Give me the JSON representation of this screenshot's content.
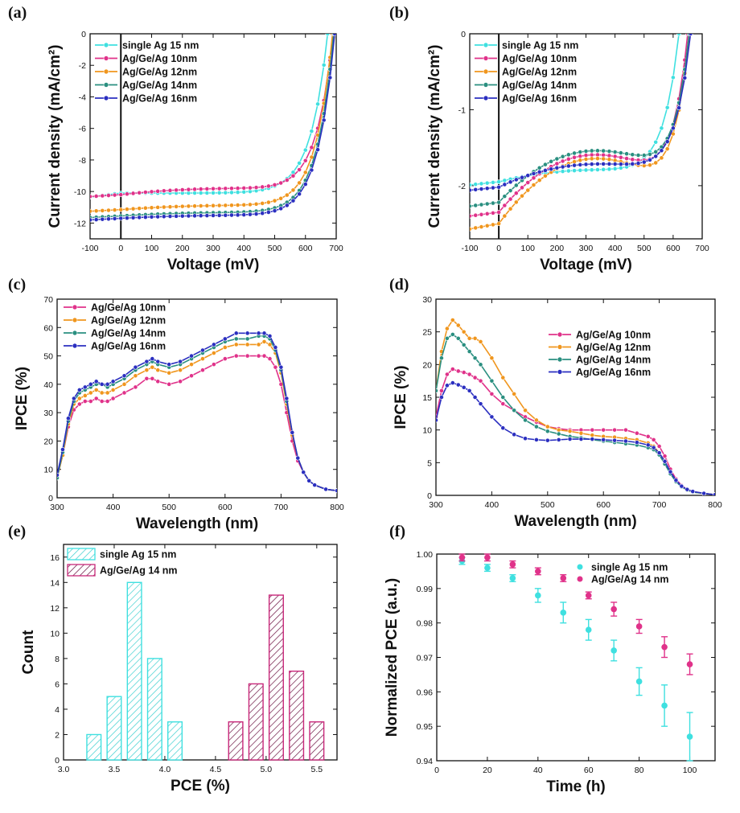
{
  "chart_data": [
    {
      "panel": "(a)",
      "type": "line",
      "xlabel": "Voltage (mV)",
      "ylabel": "Current density (mA/cm²)",
      "xlim": [
        -100,
        700
      ],
      "ylim": [
        -13,
        0
      ],
      "xticks": [
        -100,
        0,
        100,
        200,
        300,
        400,
        500,
        600,
        700
      ],
      "yticks": [
        -12,
        -10,
        -8,
        -6,
        -4,
        -2,
        0
      ],
      "legend_position": "top-left",
      "series": [
        {
          "name": "single Ag 15 nm",
          "color": "#3fe0e0",
          "Jsc": 10.1,
          "Voc": 672,
          "Jr": 10.35,
          "a": 0.0
        },
        {
          "name": "Ag/Ge/Ag 10nm",
          "color": "#e0328a",
          "Jsc": 10.2,
          "Voc": 690,
          "Jr": 10.32,
          "a": 1.5
        },
        {
          "name": "Ag/Ge/Ag 12nm",
          "color": "#f0961e",
          "Jsc": 11.15,
          "Voc": 688,
          "Jr": 11.25,
          "a": 1.0
        },
        {
          "name": "Ag/Ge/Ag 14nm",
          "color": "#2a8f80",
          "Jsc": 11.55,
          "Voc": 692,
          "Jr": 11.65,
          "a": 0.8
        },
        {
          "name": "Ag/Ge/Ag 16nm",
          "color": "#2b2fc0",
          "Jsc": 11.7,
          "Voc": 695,
          "Jr": 11.8,
          "a": 0.7
        }
      ]
    },
    {
      "panel": "(b)",
      "type": "line",
      "xlabel": "Voltage (mV)",
      "ylabel": "Current density (mA/cm²)",
      "xlim": [
        -100,
        700
      ],
      "ylim": [
        -2.7,
        0
      ],
      "xticks": [
        -100,
        0,
        100,
        200,
        300,
        400,
        500,
        600,
        700
      ],
      "yticks": [
        -2,
        -1,
        0
      ],
      "legend_position": "top-left",
      "series": [
        {
          "name": "single Ag 15 nm",
          "color": "#3fe0e0",
          "Jsc": 1.95,
          "Voc": 620,
          "Jr": 1.99,
          "a": 0.6
        },
        {
          "name": "Ag/Ge/Ag 10nm",
          "color": "#e0328a",
          "Jsc": 2.35,
          "Voc": 650,
          "Jr": 2.4,
          "a": 3.0
        },
        {
          "name": "Ag/Ge/Ag 12nm",
          "color": "#f0961e",
          "Jsc": 2.5,
          "Voc": 655,
          "Jr": 2.57,
          "a": 3.4
        },
        {
          "name": "Ag/Ge/Ag 14nm",
          "color": "#2a8f80",
          "Jsc": 2.22,
          "Voc": 655,
          "Jr": 2.27,
          "a": 2.7
        },
        {
          "name": "Ag/Ge/Ag 16nm",
          "color": "#2b2fc0",
          "Jsc": 2.02,
          "Voc": 660,
          "Jr": 2.06,
          "a": 1.2
        }
      ]
    },
    {
      "panel": "(c)",
      "type": "line",
      "xlabel": "Wavelength (nm)",
      "ylabel": "IPCE (%)",
      "xlim": [
        300,
        800
      ],
      "ylim": [
        0,
        70
      ],
      "xticks": [
        300,
        400,
        500,
        600,
        700,
        800
      ],
      "yticks": [
        0,
        10,
        20,
        30,
        40,
        50,
        60,
        70
      ],
      "legend_position": "top-left",
      "series": [
        {
          "name": "Ag/Ge/Ag 10nm",
          "color": "#e0328a",
          "x": [
            300,
            310,
            320,
            330,
            340,
            350,
            360,
            370,
            380,
            390,
            400,
            420,
            440,
            460,
            470,
            480,
            500,
            520,
            540,
            560,
            580,
            600,
            620,
            640,
            660,
            670,
            680,
            690,
            700,
            710,
            720,
            730,
            740,
            750,
            760,
            780,
            800
          ],
          "y": [
            7,
            15,
            25,
            31,
            33,
            34,
            34,
            35,
            34,
            34,
            35,
            37,
            39,
            42,
            42,
            41,
            40,
            41,
            43,
            45,
            47,
            49,
            50,
            50,
            50,
            50,
            49,
            46,
            40,
            30,
            20,
            13,
            9,
            6,
            4.5,
            3,
            2.5
          ]
        },
        {
          "name": "Ag/Ge/Ag 12nm",
          "color": "#f0961e",
          "x": [
            300,
            310,
            320,
            330,
            340,
            350,
            360,
            370,
            380,
            390,
            400,
            420,
            440,
            460,
            470,
            480,
            500,
            520,
            540,
            560,
            580,
            600,
            620,
            640,
            660,
            670,
            680,
            690,
            700,
            710,
            720,
            730,
            740,
            750,
            760,
            780,
            800
          ],
          "y": [
            7,
            15,
            26,
            33,
            35,
            36,
            37,
            38,
            37,
            37,
            38,
            40,
            43,
            45,
            46,
            45,
            44,
            45,
            47,
            49,
            51,
            53,
            54,
            54,
            54,
            55,
            54,
            51,
            44,
            33,
            22,
            14,
            9,
            6,
            4.5,
            3,
            2.5
          ]
        },
        {
          "name": "Ag/Ge/Ag 14nm",
          "color": "#2a8f80",
          "x": [
            300,
            310,
            320,
            330,
            340,
            350,
            360,
            370,
            380,
            390,
            400,
            420,
            440,
            460,
            470,
            480,
            500,
            520,
            540,
            560,
            580,
            600,
            620,
            640,
            660,
            670,
            680,
            690,
            700,
            710,
            720,
            730,
            740,
            750,
            760,
            780,
            800
          ],
          "y": [
            7,
            16,
            27,
            34,
            37,
            38,
            39,
            40,
            40,
            39,
            40,
            42,
            45,
            47,
            48,
            47,
            46,
            47,
            49,
            51,
            53,
            55,
            56,
            56,
            57,
            57,
            56,
            52,
            45,
            34,
            23,
            14,
            9,
            6,
            4.5,
            3,
            2.5
          ]
        },
        {
          "name": "Ag/Ge/Ag 16nm",
          "color": "#2b2fc0",
          "x": [
            300,
            310,
            320,
            330,
            340,
            350,
            360,
            370,
            380,
            390,
            400,
            420,
            440,
            460,
            470,
            480,
            500,
            520,
            540,
            560,
            580,
            600,
            620,
            640,
            660,
            670,
            680,
            690,
            700,
            710,
            720,
            730,
            740,
            750,
            760,
            780,
            800
          ],
          "y": [
            8,
            17,
            28,
            35,
            38,
            39,
            40,
            41,
            40,
            40,
            41,
            43,
            46,
            48,
            49,
            48,
            47,
            48,
            50,
            52,
            54,
            56,
            58,
            58,
            58,
            58,
            57,
            53,
            46,
            35,
            23,
            14,
            9,
            6,
            4.5,
            3,
            2.5
          ]
        }
      ]
    },
    {
      "panel": "(d)",
      "type": "line",
      "xlabel": "Wavelength (nm)",
      "ylabel": "IPCE (%)",
      "xlim": [
        300,
        800
      ],
      "ylim": [
        0,
        30
      ],
      "xticks": [
        300,
        400,
        500,
        600,
        700,
        800
      ],
      "yticks": [
        0,
        5,
        10,
        15,
        20,
        25,
        30
      ],
      "legend_position": "top-right",
      "series": [
        {
          "name": "Ag/Ge/Ag 10nm",
          "color": "#e0328a",
          "x": [
            300,
            310,
            320,
            330,
            340,
            350,
            360,
            370,
            380,
            400,
            420,
            440,
            460,
            480,
            500,
            520,
            540,
            560,
            580,
            600,
            620,
            640,
            660,
            680,
            690,
            700,
            710,
            720,
            730,
            740,
            750,
            760,
            780,
            800
          ],
          "y": [
            12,
            16,
            18.5,
            19.3,
            19,
            18.8,
            18.5,
            18,
            17.5,
            15.5,
            14,
            13,
            12,
            11.2,
            10.5,
            10.2,
            10,
            10,
            10,
            10,
            10,
            10,
            9.5,
            9,
            8.5,
            7.5,
            6,
            4,
            2.5,
            1.5,
            0.9,
            0.6,
            0.3,
            0.1
          ]
        },
        {
          "name": "Ag/Ge/Ag 12nm",
          "color": "#f0961e",
          "x": [
            300,
            310,
            320,
            330,
            340,
            350,
            360,
            370,
            380,
            400,
            420,
            440,
            460,
            480,
            500,
            520,
            540,
            560,
            580,
            600,
            620,
            640,
            660,
            680,
            690,
            700,
            710,
            720,
            730,
            740,
            750,
            760,
            780,
            800
          ],
          "y": [
            16,
            22,
            25.5,
            26.8,
            26,
            25,
            24,
            24,
            23.5,
            21,
            18,
            15.5,
            13,
            11.5,
            10.5,
            10,
            9.8,
            9.5,
            9.2,
            9,
            8.9,
            8.7,
            8.5,
            8,
            7.5,
            6.5,
            5,
            3.5,
            2.2,
            1.3,
            0.8,
            0.5,
            0.3,
            0.1
          ]
        },
        {
          "name": "Ag/Ge/Ag 14nm",
          "color": "#2a8f80",
          "x": [
            300,
            310,
            320,
            330,
            340,
            350,
            360,
            370,
            380,
            400,
            420,
            440,
            460,
            480,
            500,
            520,
            540,
            560,
            580,
            600,
            620,
            640,
            660,
            680,
            690,
            700,
            710,
            720,
            730,
            740,
            750,
            760,
            780,
            800
          ],
          "y": [
            16,
            21,
            24,
            24.6,
            24,
            23,
            22,
            21,
            20,
            17.5,
            15,
            13,
            11.5,
            10.5,
            9.8,
            9.4,
            9,
            8.8,
            8.5,
            8.3,
            8.1,
            7.9,
            7.7,
            7.3,
            7,
            6.2,
            4.8,
            3.3,
            2.1,
            1.3,
            0.8,
            0.5,
            0.3,
            0.1
          ]
        },
        {
          "name": "Ag/Ge/Ag 16nm",
          "color": "#2b2fc0",
          "x": [
            300,
            310,
            320,
            330,
            340,
            350,
            360,
            370,
            380,
            400,
            420,
            440,
            460,
            480,
            500,
            520,
            540,
            560,
            580,
            600,
            620,
            640,
            660,
            680,
            690,
            700,
            710,
            720,
            730,
            740,
            750,
            760,
            780,
            800
          ],
          "y": [
            11.5,
            15,
            16.8,
            17.2,
            16.9,
            16.5,
            16,
            15,
            14,
            12,
            10.3,
            9.3,
            8.7,
            8.5,
            8.4,
            8.5,
            8.6,
            8.6,
            8.6,
            8.5,
            8.4,
            8.3,
            8.1,
            7.7,
            7.3,
            6.5,
            5.2,
            3.6,
            2.3,
            1.4,
            0.9,
            0.6,
            0.3,
            0.1
          ]
        }
      ]
    },
    {
      "panel": "(e)",
      "type": "bar",
      "xlabel": "PCE (%)",
      "ylabel": "Count",
      "xlim": [
        3.0,
        5.7
      ],
      "ylim": [
        0,
        17
      ],
      "xticks": [
        3.0,
        3.5,
        4.0,
        4.5,
        5.0,
        5.5
      ],
      "xtick_labels": [
        "3.0",
        "3.5",
        "4.0",
        "4.5",
        "5.0",
        "5.5"
      ],
      "yticks": [
        0,
        2,
        4,
        6,
        8,
        10,
        12,
        14,
        16
      ],
      "bin_width": 0.2,
      "legend_position": "top-left",
      "series": [
        {
          "name": "single Ag 15 nm",
          "color": "#3fe0e0",
          "bins": [
            3.3,
            3.5,
            3.7,
            3.9,
            4.1
          ],
          "values": [
            2,
            5,
            14,
            8,
            3
          ]
        },
        {
          "name": "Ag/Ge/Ag 14 nm",
          "color": "#c8287a",
          "bins": [
            4.7,
            4.9,
            5.1,
            5.3,
            5.5
          ],
          "values": [
            3,
            6,
            13,
            7,
            3
          ]
        }
      ]
    },
    {
      "panel": "(f)",
      "type": "scatter",
      "xlabel": "Time (h)",
      "ylabel": "Normalized PCE (a.u.)",
      "xlim": [
        0,
        110
      ],
      "ylim": [
        0.94,
        1.0
      ],
      "xticks": [
        0,
        20,
        40,
        60,
        80,
        100
      ],
      "yticks": [
        0.94,
        0.95,
        0.96,
        0.97,
        0.98,
        0.99,
        1.0
      ],
      "ytick_labels": [
        "0.94",
        "0.95",
        "0.96",
        "0.97",
        "0.98",
        "0.99",
        "1.00"
      ],
      "legend_position": "top-right",
      "series": [
        {
          "name": "single Ag 15 nm",
          "color": "#3fe0e0",
          "x": [
            10,
            20,
            30,
            40,
            50,
            60,
            70,
            80,
            90,
            100
          ],
          "y": [
            0.998,
            0.996,
            0.993,
            0.988,
            0.983,
            0.978,
            0.972,
            0.963,
            0.956,
            0.947
          ],
          "err": [
            0.001,
            0.001,
            0.001,
            0.002,
            0.003,
            0.003,
            0.003,
            0.004,
            0.006,
            0.007
          ]
        },
        {
          "name": "Ag/Ge/Ag 14 nm",
          "color": "#e0328a",
          "x": [
            10,
            20,
            30,
            40,
            50,
            60,
            70,
            80,
            90,
            100
          ],
          "y": [
            0.999,
            0.999,
            0.997,
            0.995,
            0.993,
            0.988,
            0.984,
            0.979,
            0.973,
            0.968
          ],
          "err": [
            0.001,
            0.001,
            0.001,
            0.001,
            0.001,
            0.001,
            0.002,
            0.002,
            0.003,
            0.003
          ]
        }
      ]
    }
  ]
}
